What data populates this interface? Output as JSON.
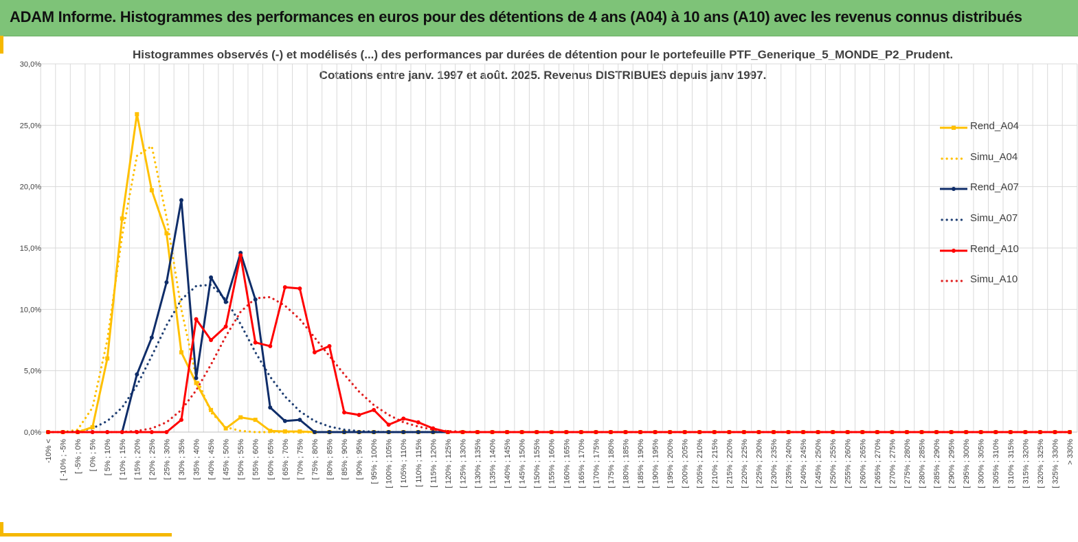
{
  "header": {
    "title": "ADAM Informe. Histogrammes des performances en euros pour des détentions de 4 ans (A04) à 10 ans (A10) avec les revenus connus distribués"
  },
  "chart_data": {
    "type": "line",
    "title": "Histogrammes observés (-) et modélisés (...) des performances par durées de détention pour le portefeuille PTF_Generique_5_MONDE_P2_Prudent.",
    "subtitle": "Cotations entre janv. 1997 et août. 2025. Revenus DISTRIBUES depuis janv 1997.",
    "xlabel": "",
    "ylabel": "",
    "ylim": [
      0,
      30
    ],
    "y_ticks": [
      "0,0%",
      "5,0%",
      "10,0%",
      "15,0%",
      "20,0%",
      "25,0%",
      "30,0%"
    ],
    "grid": true,
    "legend_position": "right",
    "categories": [
      "-10% <",
      "[ -10% ; -5%",
      "[ -5% ; 0%",
      "[ 0% ; 5%",
      "[ 5% ; 10%",
      "[ 10% ; 15%",
      "[ 15% ; 20%",
      "[ 20% ; 25%",
      "[ 25% ; 30%",
      "[ 30% ; 35%",
      "[ 35% ; 40%",
      "[ 40% ; 45%",
      "[ 45% ; 50%",
      "[ 50% ; 55%",
      "[ 55% ; 60%",
      "[ 60% ; 65%",
      "[ 65% ; 70%",
      "[ 70% ; 75%",
      "[ 75% ; 80%",
      "[ 80% ; 85%",
      "[ 85% ; 90%",
      "[ 90% ; 95%",
      "[ 95% ; 100%",
      "[ 100% ; 105%",
      "[ 105% ; 110%",
      "[ 110% ; 115%",
      "[ 115% ; 120%",
      "[ 120% ; 125%",
      "[ 125% ; 130%",
      "[ 130% ; 135%",
      "[ 135% ; 140%",
      "[ 140% ; 145%",
      "[ 145% ; 150%",
      "[ 150% ; 155%",
      "[ 155% ; 160%",
      "[ 160% ; 165%",
      "[ 165% ; 170%",
      "[ 170% ; 175%",
      "[ 175% ; 180%",
      "[ 180% ; 185%",
      "[ 185% ; 190%",
      "[ 190% ; 195%",
      "[ 195% ; 200%",
      "[ 200% ; 205%",
      "[ 205% ; 210%",
      "[ 210% ; 215%",
      "[ 215% ; 220%",
      "[ 220% ; 225%",
      "[ 225% ; 230%",
      "[ 230% ; 235%",
      "[ 235% ; 240%",
      "[ 240% ; 245%",
      "[ 245% ; 250%",
      "[ 250% ; 255%",
      "[ 255% ; 260%",
      "[ 260% ; 265%",
      "[ 265% ; 270%",
      "[ 270% ; 275%",
      "[ 275% ; 280%",
      "[ 280% ; 285%",
      "[ 285% ; 290%",
      "[ 290% ; 295%",
      "[ 295% ; 300%",
      "[ 300% ; 305%",
      "[ 305% ; 310%",
      "[ 310% ; 315%",
      "[ 315% ; 320%",
      "[ 320% ; 325%",
      "[ 325% ; 330%",
      "> 330%"
    ],
    "series": [
      {
        "name": "Rend_A04",
        "color": "#ffc000",
        "style": "solid",
        "marker": "square",
        "values": [
          0,
          0,
          0,
          0.4,
          6.0,
          17.4,
          25.9,
          19.7,
          16.2,
          6.5,
          4.0,
          1.8,
          0.3,
          1.2,
          1.0,
          0.1,
          0.05,
          0.05,
          0,
          0,
          0,
          0,
          0,
          0,
          0,
          0,
          0,
          0,
          0,
          0,
          0,
          0,
          0,
          0,
          0,
          0,
          0,
          0,
          0,
          0,
          0,
          0,
          0,
          0,
          0,
          0,
          0,
          0,
          0,
          0,
          0,
          0,
          0,
          0,
          0,
          0,
          0,
          0,
          0,
          0,
          0,
          0,
          0,
          0,
          0,
          0,
          0,
          0,
          0,
          0
        ]
      },
      {
        "name": "Simu_A04",
        "color": "#ffc000",
        "style": "dotted",
        "values": [
          0,
          0,
          0.2,
          2.0,
          7.5,
          16.0,
          22.5,
          23.3,
          17.5,
          10.0,
          4.5,
          1.6,
          0.4,
          0.1,
          0,
          0,
          0,
          0,
          0,
          0,
          0,
          0,
          0,
          0,
          0,
          0,
          0,
          0,
          0,
          0,
          0,
          0,
          0,
          0,
          0,
          0,
          0,
          0,
          0,
          0,
          0,
          0,
          0,
          0,
          0,
          0,
          0,
          0,
          0,
          0,
          0,
          0,
          0,
          0,
          0,
          0,
          0,
          0,
          0,
          0,
          0,
          0,
          0,
          0,
          0,
          0,
          0,
          0,
          0,
          0
        ]
      },
      {
        "name": "Rend_A07",
        "color": "#0f2d69",
        "style": "solid",
        "marker": "circle",
        "values": [
          0,
          0,
          0,
          0,
          0,
          0,
          4.7,
          7.7,
          12.2,
          18.9,
          4.4,
          12.6,
          10.6,
          14.6,
          10.8,
          2.0,
          0.9,
          1.0,
          0,
          0,
          0,
          0,
          0,
          0,
          0,
          0,
          0,
          0,
          0,
          0,
          0,
          0,
          0,
          0,
          0,
          0,
          0,
          0,
          0,
          0,
          0,
          0,
          0,
          0,
          0,
          0,
          0,
          0,
          0,
          0,
          0,
          0,
          0,
          0,
          0,
          0,
          0,
          0,
          0,
          0,
          0,
          0,
          0,
          0,
          0,
          0,
          0,
          0,
          0,
          0
        ]
      },
      {
        "name": "Simu_A07",
        "color": "#1f3f73",
        "style": "dotted",
        "values": [
          0,
          0,
          0.05,
          0.3,
          0.9,
          2.0,
          3.8,
          6.2,
          8.7,
          10.8,
          11.9,
          12.0,
          10.8,
          8.8,
          6.5,
          4.5,
          2.9,
          1.7,
          0.9,
          0.45,
          0.2,
          0.08,
          0.03,
          0,
          0,
          0,
          0,
          0,
          0,
          0,
          0,
          0,
          0,
          0,
          0,
          0,
          0,
          0,
          0,
          0,
          0,
          0,
          0,
          0,
          0,
          0,
          0,
          0,
          0,
          0,
          0,
          0,
          0,
          0,
          0,
          0,
          0,
          0,
          0,
          0,
          0,
          0,
          0,
          0,
          0,
          0,
          0,
          0,
          0,
          0
        ]
      },
      {
        "name": "Rend_A10",
        "color": "#ff0000",
        "style": "solid",
        "marker": "circle",
        "values": [
          0,
          0,
          0,
          0,
          0,
          0,
          0,
          0,
          0,
          1.0,
          9.2,
          7.5,
          8.6,
          14.4,
          7.3,
          7.0,
          11.8,
          11.7,
          6.5,
          7.0,
          1.6,
          1.4,
          1.8,
          0.6,
          1.1,
          0.8,
          0.3,
          0,
          0,
          0,
          0,
          0,
          0,
          0,
          0,
          0,
          0,
          0,
          0,
          0,
          0,
          0,
          0,
          0,
          0,
          0,
          0,
          0,
          0,
          0,
          0,
          0,
          0,
          0,
          0,
          0,
          0,
          0,
          0,
          0,
          0,
          0,
          0,
          0,
          0,
          0,
          0,
          0,
          0,
          0
        ]
      },
      {
        "name": "Simu_A10",
        "color": "#e02020",
        "style": "dotted",
        "values": [
          0,
          0,
          0,
          0,
          0,
          0,
          0.1,
          0.3,
          0.8,
          1.8,
          3.4,
          5.5,
          7.8,
          9.8,
          10.9,
          11.0,
          10.3,
          9.2,
          7.7,
          6.2,
          4.7,
          3.3,
          2.2,
          1.4,
          0.8,
          0.45,
          0.2,
          0.08,
          0.03,
          0,
          0,
          0,
          0,
          0,
          0,
          0,
          0,
          0,
          0,
          0,
          0,
          0,
          0,
          0,
          0,
          0,
          0,
          0,
          0,
          0,
          0,
          0,
          0,
          0,
          0,
          0,
          0,
          0,
          0,
          0,
          0,
          0,
          0,
          0,
          0,
          0,
          0,
          0,
          0,
          0
        ]
      }
    ]
  }
}
